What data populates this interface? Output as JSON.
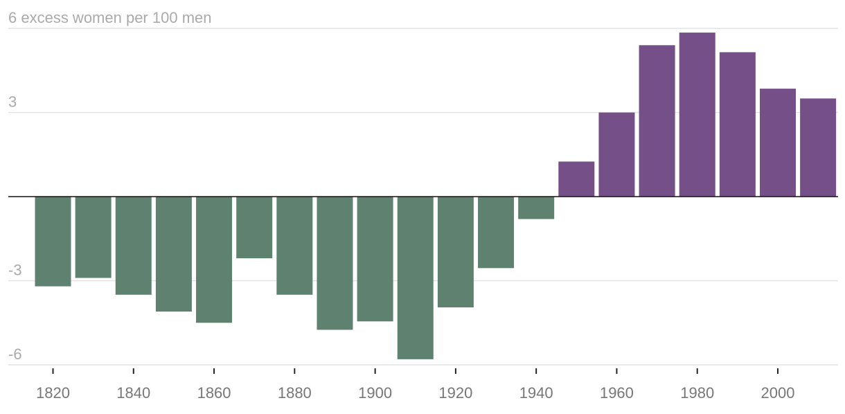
{
  "chart_data": {
    "type": "bar",
    "x": [
      1820,
      1830,
      1840,
      1850,
      1860,
      1870,
      1880,
      1890,
      1900,
      1910,
      1920,
      1930,
      1940,
      1950,
      1960,
      1970,
      1980,
      1990,
      2000,
      2010
    ],
    "values": [
      -3.2,
      -2.9,
      -3.5,
      -4.1,
      -4.5,
      -2.2,
      -3.5,
      -4.75,
      -4.45,
      -5.8,
      -3.95,
      -2.55,
      -0.8,
      1.25,
      3.0,
      5.4,
      5.85,
      5.15,
      3.85,
      3.5
    ],
    "ylim": [
      -6,
      6
    ],
    "y_ticks": [
      6,
      3,
      -3,
      -6
    ],
    "y_tick_labels": [
      "6 excess women per 100 men",
      "3",
      "-3",
      "-6"
    ],
    "x_ticks": [
      1820,
      1840,
      1860,
      1880,
      1900,
      1920,
      1940,
      1960,
      1980,
      2000
    ],
    "x_tick_labels": [
      "1820",
      "1840",
      "1860",
      "1880",
      "1900",
      "1920",
      "1940",
      "1960",
      "1980",
      "2000"
    ],
    "colors": {
      "negative": "#5f8270",
      "positive": "#744f88",
      "grid": "#e2e2e2",
      "zero_line": "#111111"
    },
    "grid": true
  }
}
